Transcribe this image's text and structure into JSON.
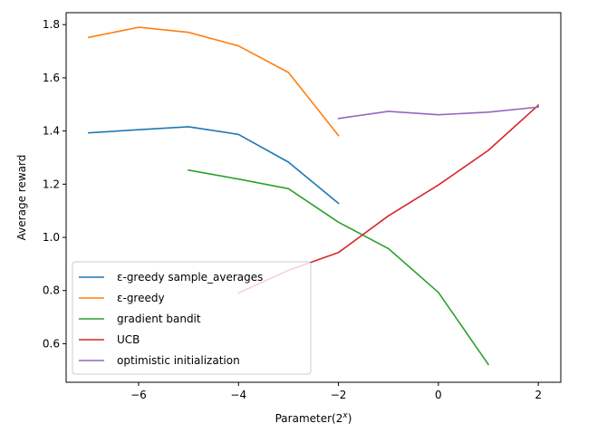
{
  "chart_data": {
    "type": "line",
    "title": "",
    "xlabel": "Parameter(2",
    "xlabel_sup": "x",
    "xlabel_suffix": ")",
    "ylabel": "Average reward",
    "xlim": [
      -7.45,
      2.45
    ],
    "ylim": [
      0.455,
      1.845
    ],
    "xticks": [
      -6,
      -4,
      -2,
      0,
      2
    ],
    "xtick_labels": [
      "−6",
      "−4",
      "−2",
      "0",
      "2"
    ],
    "yticks": [
      0.6,
      0.8,
      1.0,
      1.2,
      1.4,
      1.6,
      1.8
    ],
    "ytick_labels": [
      "0.6",
      "0.8",
      "1.0",
      "1.2",
      "1.4",
      "1.6",
      "1.8"
    ],
    "grid": false,
    "legend_position": "bottom-left",
    "series": [
      {
        "name": "ε-greedy sample_averages",
        "color": "#1f77b4",
        "x": [
          -7,
          -6,
          -5,
          -4,
          -3,
          -2
        ],
        "y": [
          1.393,
          1.405,
          1.416,
          1.387,
          1.283,
          1.128
        ]
      },
      {
        "name": "ε-greedy",
        "color": "#ff7f0e",
        "x": [
          -7,
          -6,
          -5,
          -4,
          -3,
          -2
        ],
        "y": [
          1.752,
          1.79,
          1.771,
          1.72,
          1.62,
          1.383
        ]
      },
      {
        "name": "gradient bandit",
        "color": "#2ca02c",
        "x": [
          -5,
          -4,
          -3,
          -2,
          -1,
          0,
          1
        ],
        "y": [
          1.253,
          1.219,
          1.183,
          1.057,
          0.958,
          0.793,
          0.522
        ]
      },
      {
        "name": "UCB",
        "color": "#d62728",
        "x": [
          -4,
          -3,
          -2,
          -1,
          0,
          1,
          2
        ],
        "y": [
          0.791,
          0.876,
          0.943,
          1.081,
          1.197,
          1.327,
          1.497
        ]
      },
      {
        "name": "optimistic initialization",
        "color": "#9467bd",
        "x": [
          -2,
          -1,
          0,
          1,
          2
        ],
        "y": [
          1.447,
          1.474,
          1.461,
          1.471,
          1.49
        ]
      }
    ]
  }
}
